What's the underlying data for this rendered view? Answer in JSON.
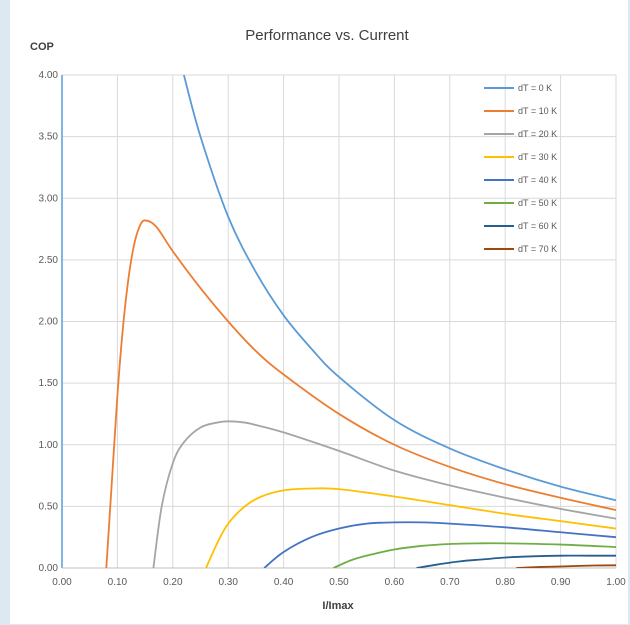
{
  "chart_data": {
    "type": "line",
    "title": "Performance vs. Current",
    "xlabel": "I/Imax",
    "ylabel": "COP",
    "xlim": [
      0,
      1
    ],
    "ylim": [
      0,
      4
    ],
    "x_ticks": [
      "0.00",
      "0.10",
      "0.20",
      "0.30",
      "0.40",
      "0.50",
      "0.60",
      "0.70",
      "0.80",
      "0.90",
      "1.00"
    ],
    "y_ticks": [
      "0.00",
      "0.50",
      "1.00",
      "1.50",
      "2.00",
      "2.50",
      "3.00",
      "3.50",
      "4.00"
    ],
    "grid": true,
    "legend_position": "top-right",
    "series": [
      {
        "name": "dT = 0 K",
        "color": "#5b9bd5",
        "x": [
          0.22,
          0.25,
          0.3,
          0.35,
          0.4,
          0.45,
          0.5,
          0.6,
          0.7,
          0.8,
          0.9,
          1.0
        ],
        "y": [
          4.0,
          3.5,
          2.85,
          2.4,
          2.05,
          1.78,
          1.55,
          1.2,
          0.97,
          0.8,
          0.66,
          0.55
        ]
      },
      {
        "name": "dT = 10 K",
        "color": "#ed7d31",
        "x": [
          0.08,
          0.09,
          0.1,
          0.11,
          0.12,
          0.13,
          0.14,
          0.15,
          0.17,
          0.2,
          0.25,
          0.3,
          0.35,
          0.4,
          0.5,
          0.6,
          0.7,
          0.8,
          0.9,
          1.0
        ],
        "y": [
          0.0,
          0.7,
          1.4,
          1.95,
          2.35,
          2.62,
          2.77,
          2.82,
          2.77,
          2.57,
          2.27,
          2.0,
          1.76,
          1.57,
          1.25,
          1.0,
          0.82,
          0.68,
          0.57,
          0.47
        ]
      },
      {
        "name": "dT = 20 K",
        "color": "#a5a5a5",
        "x": [
          0.165,
          0.18,
          0.2,
          0.22,
          0.25,
          0.28,
          0.3,
          0.33,
          0.35,
          0.4,
          0.5,
          0.6,
          0.7,
          0.8,
          0.9,
          1.0
        ],
        "y": [
          0.0,
          0.5,
          0.85,
          1.02,
          1.14,
          1.18,
          1.19,
          1.18,
          1.16,
          1.1,
          0.95,
          0.79,
          0.67,
          0.57,
          0.48,
          0.4
        ]
      },
      {
        "name": "dT = 30 K",
        "color": "#ffc000",
        "x": [
          0.26,
          0.28,
          0.3,
          0.33,
          0.36,
          0.4,
          0.45,
          0.5,
          0.6,
          0.7,
          0.8,
          0.9,
          1.0
        ],
        "y": [
          0.0,
          0.2,
          0.36,
          0.5,
          0.58,
          0.63,
          0.645,
          0.64,
          0.58,
          0.51,
          0.44,
          0.38,
          0.32
        ]
      },
      {
        "name": "dT = 40 K",
        "color": "#4472c4",
        "x": [
          0.365,
          0.4,
          0.45,
          0.5,
          0.55,
          0.6,
          0.65,
          0.7,
          0.8,
          0.9,
          1.0
        ],
        "y": [
          0.0,
          0.13,
          0.25,
          0.32,
          0.36,
          0.37,
          0.37,
          0.36,
          0.33,
          0.29,
          0.25
        ]
      },
      {
        "name": "dT = 50 K",
        "color": "#70ad47",
        "x": [
          0.49,
          0.52,
          0.55,
          0.6,
          0.65,
          0.7,
          0.75,
          0.8,
          0.9,
          1.0
        ],
        "y": [
          0.0,
          0.06,
          0.1,
          0.15,
          0.18,
          0.195,
          0.2,
          0.2,
          0.19,
          0.17
        ]
      },
      {
        "name": "dT = 60 K",
        "color": "#255e91",
        "x": [
          0.64,
          0.68,
          0.72,
          0.76,
          0.8,
          0.85,
          0.9,
          0.95,
          1.0
        ],
        "y": [
          0.0,
          0.03,
          0.055,
          0.07,
          0.085,
          0.095,
          0.1,
          0.1,
          0.1
        ]
      },
      {
        "name": "dT = 70 K",
        "color": "#9e480e",
        "x": [
          0.82,
          0.85,
          0.88,
          0.92,
          0.96,
          1.0
        ],
        "y": [
          0.0,
          0.006,
          0.01,
          0.015,
          0.02,
          0.022
        ]
      }
    ]
  }
}
